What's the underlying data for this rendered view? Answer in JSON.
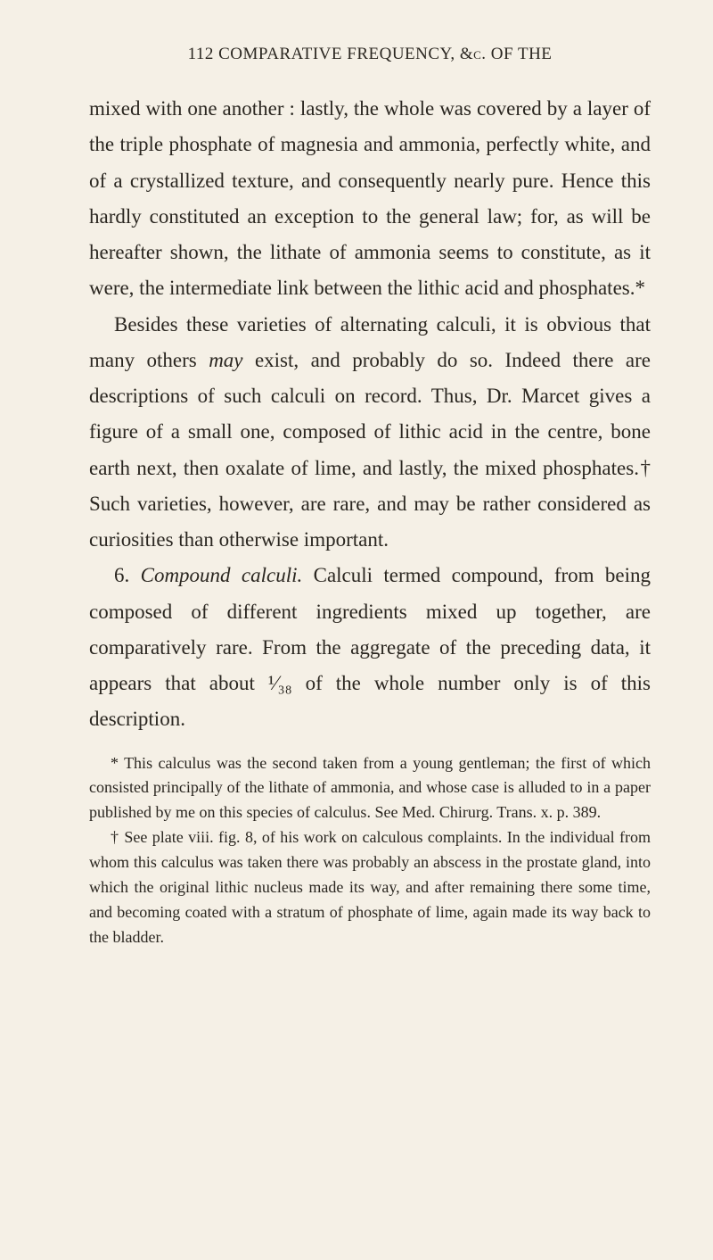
{
  "header": {
    "page_number": "112",
    "running_title": "COMPARATIVE FREQUENCY, &c. OF THE"
  },
  "paragraphs": {
    "p1": "mixed with one another : lastly, the whole was covered by a layer of the triple phosphate of magnesia and ammonia, perfectly white, and of a crystallized texture, and consequently nearly pure. Hence this hardly constituted an exception to the general law; for, as will be hereafter shown, the lithate of ammonia seems to constitute, as it were, the intermediate link between the lithic acid and phosphates.*",
    "p2_a": "Besides these varieties of alternating calculi, it is obvious that many others ",
    "p2_may": "may",
    "p2_b": " exist, and probably do so. Indeed there are descriptions of such calculi on record. Thus, Dr. Marcet gives a figure of a small one, composed of lithic acid in the centre, bone earth next, then oxalate of lime, and lastly, the mixed phosphates.† Such varieties, however, are rare, and may be rather considered as curiosities than otherwise important.",
    "p3_a": "6. ",
    "p3_title": "Compound calculi.",
    "p3_b": " Calculi termed compound, from being composed of different ingredients mixed up together, are comparatively rare. From the aggregate of the preceding data, it appears that about ¹⁄₃₈ of the whole number only is of this description."
  },
  "footnotes": {
    "f1": "* This calculus was the second taken from a young gentleman; the first of which consisted principally of the lithate of ammonia, and whose case is alluded to in a paper published by me on this species of calculus. See Med. Chirurg. Trans. x. p. 389.",
    "f2": "† See plate viii. fig. 8, of his work on calculous complaints. In the individual from whom this calculus was taken there was probably an abscess in the prostate gland, into which the original lithic nucleus made its way, and after remaining there some time, and becoming coated with a stratum of phosphate of lime, again made its way back to the bladder."
  },
  "colors": {
    "background": "#f5f0e6",
    "text": "#2a2620"
  },
  "typography": {
    "body_fontsize": 23,
    "header_fontsize": 19,
    "footnote_fontsize": 18,
    "line_height": 1.75
  }
}
